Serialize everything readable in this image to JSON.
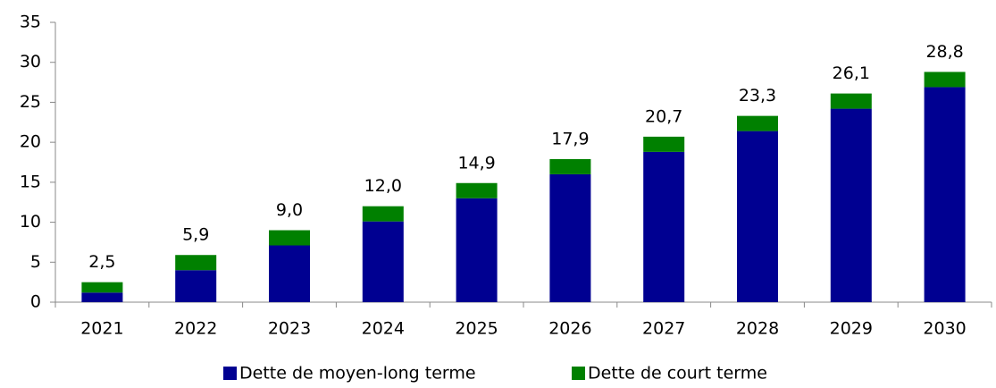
{
  "chart_data": {
    "type": "stacked_bar",
    "categories": [
      "2021",
      "2022",
      "2023",
      "2024",
      "2025",
      "2026",
      "2027",
      "2028",
      "2029",
      "2030"
    ],
    "series": [
      {
        "name": "Dette de moyen-long terme",
        "color": "#000091",
        "values": [
          1.2,
          4.0,
          7.1,
          10.1,
          13.0,
          16.0,
          18.8,
          21.4,
          24.2,
          26.9
        ]
      },
      {
        "name": "Dette de court terme",
        "color": "#008000",
        "values": [
          1.3,
          1.9,
          1.9,
          1.9,
          1.9,
          1.9,
          1.9,
          1.9,
          1.9,
          1.9
        ]
      }
    ],
    "totals": [
      2.5,
      5.9,
      9.0,
      12.0,
      14.9,
      17.9,
      20.7,
      23.3,
      26.1,
      28.8
    ],
    "total_labels": [
      "2,5",
      "5,9",
      "9,0",
      "12,0",
      "14,9",
      "17,9",
      "20,7",
      "23,3",
      "26,1",
      "28,8"
    ],
    "ylim": [
      0,
      35
    ],
    "yticks": [
      0,
      5,
      10,
      15,
      20,
      25,
      30,
      35
    ],
    "grid": false,
    "legend": "bottom"
  }
}
